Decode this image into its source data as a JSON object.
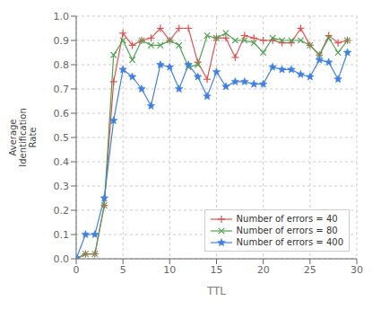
{
  "chart_data": {
    "type": "line",
    "title": "",
    "xlabel": "TTL",
    "ylabel": "Average\nIdentification\nRate",
    "x": [
      0,
      1,
      2,
      3,
      4,
      5,
      6,
      7,
      8,
      9,
      10,
      11,
      12,
      13,
      14,
      15,
      16,
      17,
      18,
      19,
      20,
      21,
      22,
      23,
      24,
      25,
      26,
      27,
      28,
      29
    ],
    "series": [
      {
        "name": "Number of errors = 40",
        "color": "#e05050",
        "marker": "plus",
        "values": [
          0.0,
          0.02,
          0.02,
          0.22,
          0.73,
          0.93,
          0.88,
          0.9,
          0.91,
          0.95,
          0.9,
          0.95,
          0.95,
          0.81,
          0.74,
          0.91,
          0.91,
          0.83,
          0.92,
          0.91,
          0.9,
          0.9,
          0.89,
          0.89,
          0.95,
          0.88,
          0.84,
          0.92,
          0.89,
          0.9
        ]
      },
      {
        "name": "Number of errors = 80",
        "color": "#50a050",
        "marker": "cross",
        "values": [
          0.0,
          0.02,
          0.02,
          0.22,
          0.84,
          0.9,
          0.82,
          0.9,
          0.88,
          0.88,
          0.9,
          0.88,
          0.79,
          0.8,
          0.92,
          0.91,
          0.93,
          0.9,
          0.9,
          0.89,
          0.85,
          0.91,
          0.9,
          0.9,
          0.9,
          0.88,
          0.84,
          0.91,
          0.85,
          0.9
        ]
      },
      {
        "name": "Number of errors = 400",
        "color": "#4080e0",
        "marker": "star",
        "values": [
          0.0,
          0.1,
          0.1,
          0.25,
          0.57,
          0.78,
          0.75,
          0.7,
          0.63,
          0.8,
          0.79,
          0.7,
          0.8,
          0.75,
          0.67,
          0.77,
          0.71,
          0.73,
          0.73,
          0.72,
          0.72,
          0.79,
          0.78,
          0.78,
          0.76,
          0.75,
          0.82,
          0.81,
          0.74,
          0.85
        ]
      }
    ],
    "xlim": [
      0,
      30
    ],
    "ylim": [
      0,
      1.0
    ],
    "xticks": [
      0,
      5,
      10,
      15,
      20,
      25,
      30
    ],
    "yticks": [
      {
        "value": 0,
        "label": "0.0"
      },
      0.1,
      0.2,
      0.3,
      0.4,
      0.5,
      0.6,
      0.7,
      0.8,
      0.9,
      {
        "value": 1,
        "label": "1.0"
      }
    ],
    "grid": true,
    "legend": "lower right"
  }
}
